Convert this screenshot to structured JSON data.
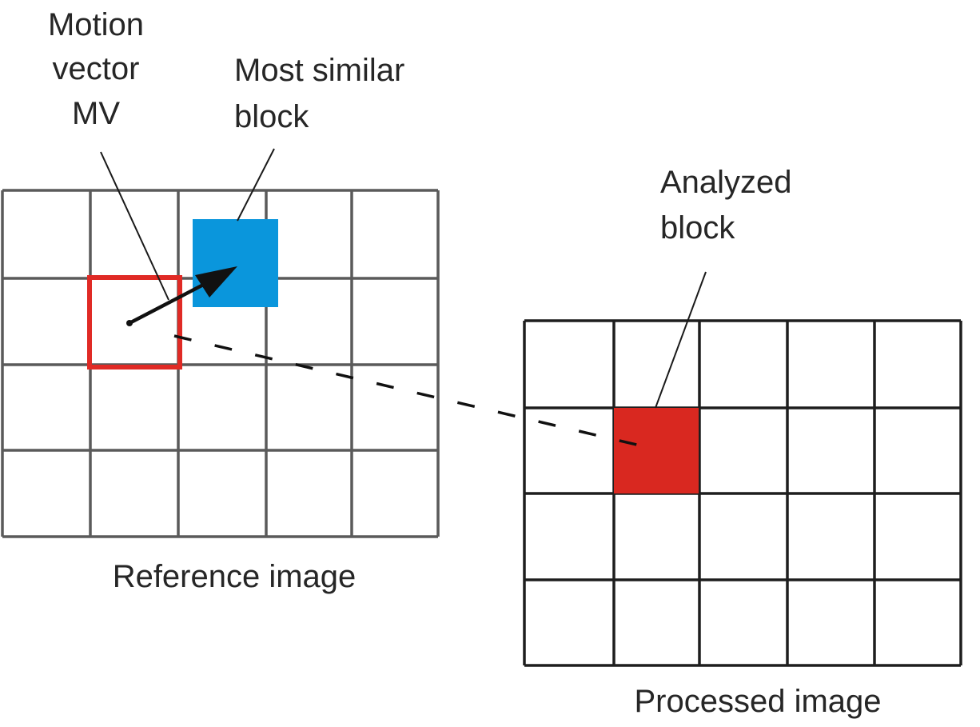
{
  "labels": {
    "motion_vector": [
      "Motion",
      "vector",
      "MV"
    ],
    "most_similar_block": [
      "Most similar",
      "block"
    ],
    "analyzed_block": [
      "Analyzed",
      "block"
    ],
    "reference_image": "Reference image",
    "processed_image": "Processed image"
  },
  "colors": {
    "most_similar_block": "#0a96dc",
    "search_window_outline": "#e02a25",
    "analyzed_block": "#d92820",
    "reference_grid": "#5a5a5a",
    "processed_grid": "#1e1e1e",
    "arrow": "#111111"
  }
}
